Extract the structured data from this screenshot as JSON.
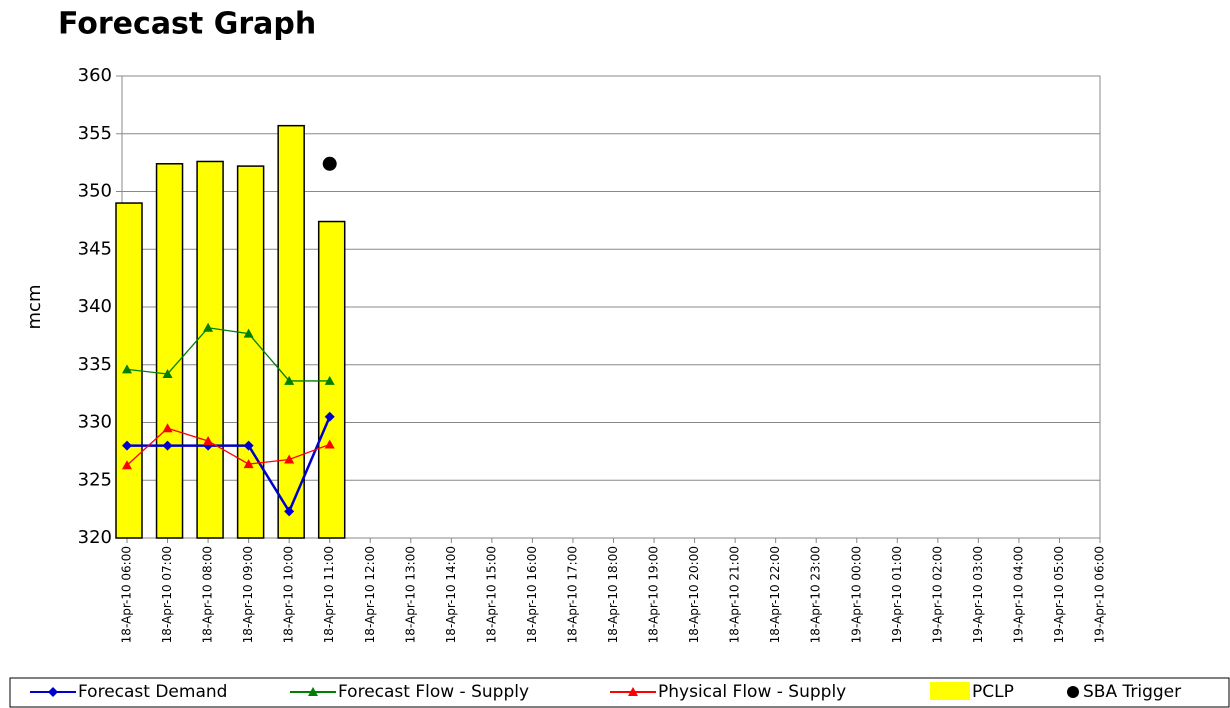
{
  "chart_data": {
    "type": "combo",
    "title": "Forecast Graph",
    "y_label": "mcm",
    "categories": [
      "18-Apr-10 06:00",
      "18-Apr-10 07:00",
      "18-Apr-10 08:00",
      "18-Apr-10 09:00",
      "18-Apr-10 10:00",
      "18-Apr-10 11:00",
      "18-Apr-10 12:00",
      "18-Apr-10 13:00",
      "18-Apr-10 14:00",
      "18-Apr-10 15:00",
      "18-Apr-10 16:00",
      "18-Apr-10 17:00",
      "18-Apr-10 18:00",
      "18-Apr-10 19:00",
      "18-Apr-10 20:00",
      "18-Apr-10 21:00",
      "18-Apr-10 22:00",
      "18-Apr-10 23:00",
      "19-Apr-10 00:00",
      "19-Apr-10 01:00",
      "19-Apr-10 02:00",
      "19-Apr-10 03:00",
      "19-Apr-10 04:00",
      "19-Apr-10 05:00",
      "19-Apr-10 06:00"
    ],
    "ylim": [
      320,
      360
    ],
    "yticks": [
      320,
      325,
      330,
      335,
      340,
      345,
      350,
      355,
      360
    ],
    "grid": true,
    "legend": "bottom",
    "series": [
      {
        "name": "Forecast Demand",
        "type": "line",
        "color": "#0000cc",
        "marker": "diamond",
        "values": [
          328,
          328,
          328,
          328,
          322.3,
          330.5,
          null,
          null,
          null,
          null,
          null,
          null,
          null,
          null,
          null,
          null,
          null,
          null,
          null,
          null,
          null,
          null,
          null,
          null,
          null
        ]
      },
      {
        "name": "Forecast Flow - Supply",
        "type": "line",
        "color": "#008000",
        "marker": "triangle",
        "values": [
          334.6,
          334.2,
          338.2,
          337.7,
          333.6,
          333.6,
          null,
          null,
          null,
          null,
          null,
          null,
          null,
          null,
          null,
          null,
          null,
          null,
          null,
          null,
          null,
          null,
          null,
          null,
          null
        ]
      },
      {
        "name": "Physical Flow - Supply",
        "type": "line",
        "color": "#ff0000",
        "marker": "triangle",
        "values": [
          326.3,
          329.5,
          328.4,
          326.4,
          326.8,
          328.1,
          null,
          null,
          null,
          null,
          null,
          null,
          null,
          null,
          null,
          null,
          null,
          null,
          null,
          null,
          null,
          null,
          null,
          null,
          null
        ]
      },
      {
        "name": "PCLP",
        "type": "bar",
        "color": "#ffff00",
        "values": [
          349.0,
          352.4,
          352.6,
          352.2,
          355.7,
          347.4,
          null,
          null,
          null,
          null,
          null,
          null,
          null,
          null,
          null,
          null,
          null,
          null,
          null,
          null,
          null,
          null,
          null,
          null,
          null
        ]
      },
      {
        "name": "SBA Trigger",
        "type": "scatter",
        "color": "#000000",
        "values": [
          null,
          null,
          null,
          null,
          null,
          352.4,
          null,
          null,
          null,
          null,
          null,
          null,
          null,
          null,
          null,
          null,
          null,
          null,
          null,
          null,
          null,
          null,
          null,
          null,
          null
        ]
      }
    ]
  }
}
